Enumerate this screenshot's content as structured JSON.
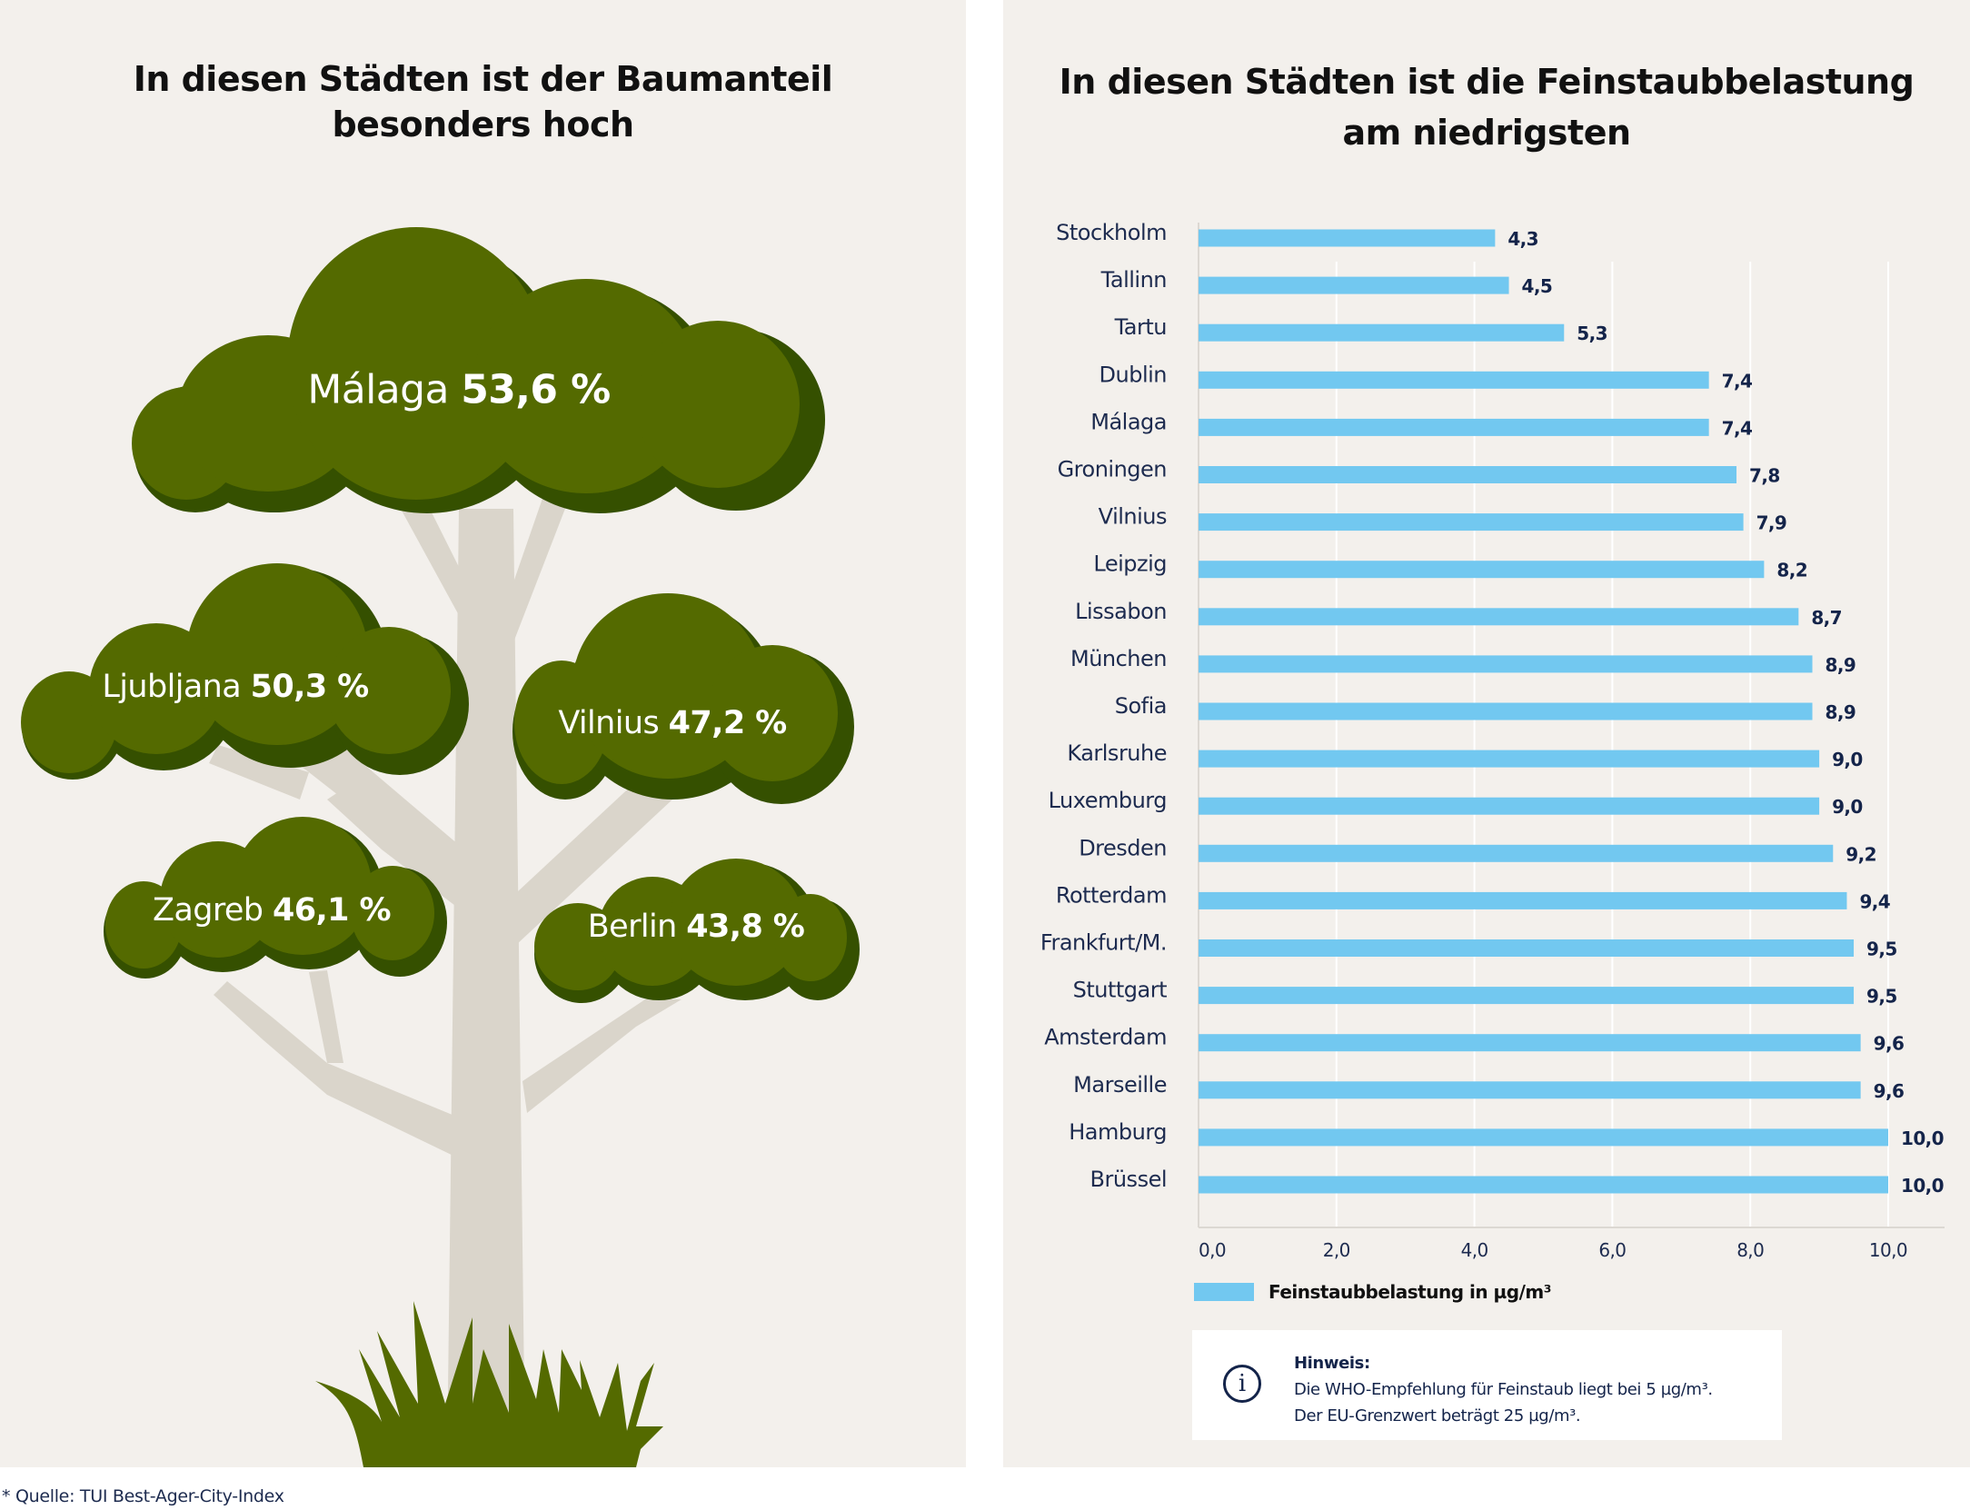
{
  "left_panel": {
    "title_lines": [
      "In diesen Städten ist der Baumanteil",
      "besonders hoch"
    ],
    "crowns": [
      {
        "city": "Málaga",
        "value": "53,6 %"
      },
      {
        "city": "Ljubljana",
        "value": "50,3 %"
      },
      {
        "city": "Vilnius",
        "value": "47,2 %"
      },
      {
        "city": "Zagreb",
        "value": "46,1 %"
      },
      {
        "city": "Berlin",
        "value": "43,8 %"
      }
    ],
    "colors": {
      "crown": "#546a00",
      "crown_shadow": "#355000",
      "trunk": "#dad5cb",
      "background": "#f3f0ec"
    }
  },
  "right_panel": {
    "title_lines": [
      "In diesen Städten ist die Feinstaubbelastung",
      "am niedrigsten"
    ],
    "legend_label": "Feinstaubbelastung in µg/m³",
    "info": {
      "heading": "Hinweis:",
      "lines": [
        "Die WHO-Empfehlung für Feinstaub liegt bei 5 µg/m³.",
        "Der EU-Grenzwert beträgt 25 µg/m³."
      ],
      "icon": "info-icon"
    }
  },
  "footer": "* Quelle: TUI Best-Ager-City-Index",
  "chart_data": [
    {
      "type": "bar",
      "orientation": "horizontal",
      "title": "In diesen Städten ist die Feinstaubbelastung am niedrigsten",
      "categories": [
        "Stockholm",
        "Tallinn",
        "Tartu",
        "Dublin",
        "Málaga",
        "Groningen",
        "Vilnius",
        "Leipzig",
        "Lissabon",
        "München",
        "Sofia",
        "Karlsruhe",
        "Luxemburg",
        "Dresden",
        "Rotterdam",
        "Frankfurt/M.",
        "Stuttgart",
        "Amsterdam",
        "Marseille",
        "Hamburg",
        "Brüssel"
      ],
      "series": [
        {
          "name": "Feinstaubbelastung in µg/m³",
          "values": [
            4.3,
            4.5,
            5.3,
            7.4,
            7.4,
            7.8,
            7.9,
            8.2,
            8.7,
            8.9,
            8.9,
            9.0,
            9.0,
            9.2,
            9.4,
            9.5,
            9.5,
            9.6,
            9.6,
            10.0,
            10.0
          ],
          "value_labels": [
            "4,3",
            "4,5",
            "5,3",
            "7,4",
            "7,4",
            "7,8",
            "7,9",
            "8,2",
            "8,7",
            "8,9",
            "8,9",
            "9,0",
            "9,0",
            "9,2",
            "9,4",
            "9,5",
            "9,5",
            "9,6",
            "9,6",
            "10,0",
            "10,0"
          ],
          "color": "#72c8f0"
        }
      ],
      "xlabel": "",
      "ylabel": "",
      "xlim": [
        0,
        10
      ],
      "x_ticks": [
        0,
        2,
        4,
        6,
        8,
        10
      ],
      "x_tick_labels": [
        "0,0",
        "2,0",
        "4,0",
        "6,0",
        "8,0",
        "10,0"
      ],
      "grid": true,
      "legend": "bottom-left"
    },
    {
      "type": "table",
      "title": "In diesen Städten ist der Baumanteil besonders hoch",
      "categories": [
        "Málaga",
        "Ljubljana",
        "Vilnius",
        "Zagreb",
        "Berlin"
      ],
      "values": [
        53.6,
        50.3,
        47.2,
        46.1,
        43.8
      ],
      "unit": "%"
    }
  ]
}
